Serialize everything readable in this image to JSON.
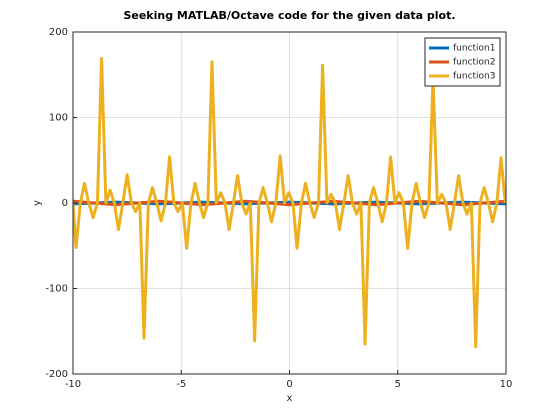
{
  "chart_data": {
    "type": "line",
    "title": "Seeking MATLAB/Octave code for the given data plot.",
    "x_label": "x",
    "y_label": "y",
    "xlim": [
      -10,
      10
    ],
    "xticks": [
      -10,
      -5,
      0,
      5,
      10
    ],
    "ylim": [
      -200,
      200
    ],
    "yticks": [
      -200,
      -100,
      0,
      100,
      200
    ],
    "grid": true,
    "legend": "upper right",
    "series": [
      {
        "name": "function1",
        "color": "#0072bd",
        "x": [
          -10,
          -8,
          -6,
          -4,
          -2,
          0,
          2,
          4,
          6,
          8,
          10
        ],
        "values": [
          -1,
          1,
          -1,
          1,
          -1,
          1,
          -1,
          1,
          -1,
          1,
          -1
        ]
      },
      {
        "name": "function2",
        "color": "#d95319",
        "x": [
          -10,
          -8,
          -6,
          -4,
          -2,
          0,
          2,
          4,
          6,
          8,
          10
        ],
        "values": [
          2,
          -2,
          2,
          -2,
          2,
          -2,
          2,
          -2,
          2,
          -2,
          2
        ]
      },
      {
        "name": "function3",
        "color": "#edb120",
        "x": [
          -10,
          -9.86,
          -9.66,
          -9.47,
          -9.27,
          -9.07,
          -8.87,
          -8.68,
          -8.48,
          -8.29,
          -8.09,
          -7.9,
          -7.7,
          -7.5,
          -7.3,
          -7.11,
          -6.91,
          -6.72,
          -6.52,
          -6.33,
          -6.13,
          -5.93,
          -5.73,
          -5.54,
          -5.34,
          -5.15,
          -4.95,
          -4.75,
          -4.55,
          -4.36,
          -4.16,
          -3.97,
          -3.77,
          -3.58,
          -3.38,
          -3.18,
          -2.98,
          -2.79,
          -2.59,
          -2.4,
          -2.2,
          -2.01,
          -1.81,
          -1.61,
          -1.41,
          -1.22,
          -1.02,
          -0.83,
          -0.63,
          -0.43,
          -0.23,
          -0.04,
          0.16,
          0.35,
          0.55,
          0.74,
          0.94,
          1.14,
          1.34,
          1.53,
          1.73,
          1.92,
          2.12,
          2.31,
          2.51,
          2.71,
          2.91,
          3.1,
          3.3,
          3.49,
          3.69,
          3.88,
          4.08,
          4.28,
          4.48,
          4.67,
          4.87,
          5.06,
          5.26,
          5.46,
          5.66,
          5.85,
          6.05,
          6.24,
          6.44,
          6.63,
          6.83,
          7.03,
          7.23,
          7.42,
          7.62,
          7.81,
          8.01,
          8.2,
          8.4,
          8.6,
          8.8,
          8.99,
          9.19,
          9.38,
          9.58,
          9.77,
          9.97
        ],
        "values": [
          0,
          -52,
          0,
          23,
          0,
          -17,
          0,
          169,
          0,
          15,
          0,
          -31,
          0,
          33,
          0,
          -10,
          0,
          -158,
          0,
          18,
          0,
          -21,
          0,
          54,
          0,
          -10,
          0,
          -53,
          0,
          23,
          0,
          -17,
          0,
          165,
          0,
          12,
          0,
          -31,
          0,
          32,
          0,
          -13,
          0,
          -161,
          0,
          18,
          0,
          -22,
          0,
          55,
          0,
          12,
          0,
          -53,
          0,
          23,
          0,
          -17,
          0,
          161,
          0,
          10,
          0,
          -31,
          0,
          32,
          0,
          -13,
          0,
          -165,
          0,
          18,
          0,
          -22,
          0,
          54,
          0,
          12,
          0,
          -53,
          0,
          23,
          0,
          -17,
          0,
          145,
          0,
          10,
          0,
          -31,
          0,
          32,
          0,
          -13,
          0,
          -168,
          0,
          18,
          0,
          -22,
          0,
          53,
          0
        ]
      }
    ]
  }
}
